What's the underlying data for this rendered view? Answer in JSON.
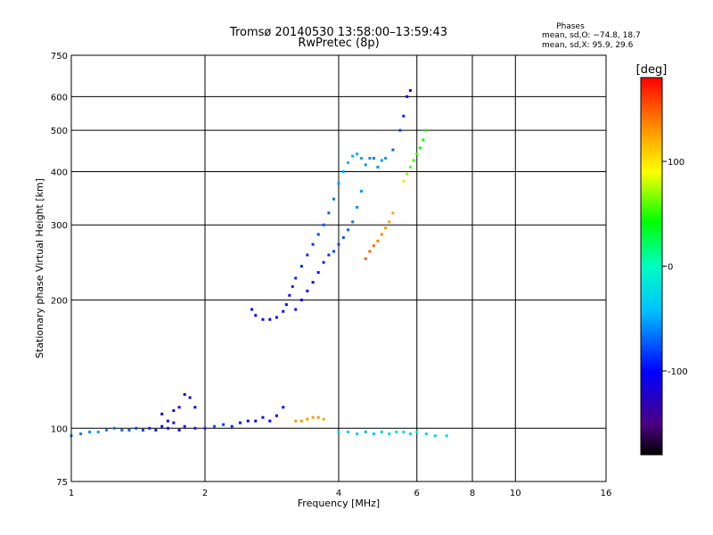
{
  "chart_data": {
    "type": "scatter",
    "title": "Tromsø 20140530 13:58:00–13:59:43",
    "subtitle": "RwPretec (8p)",
    "xlabel": "Frequency [MHz]",
    "ylabel": "Stationary phase Virtual Height [km]",
    "xscale": "log",
    "yscale": "log",
    "xlim": [
      1,
      16
    ],
    "ylim": [
      75,
      750
    ],
    "xticks": [
      1,
      2,
      4,
      6,
      8,
      10,
      16
    ],
    "yticks": [
      75,
      100,
      200,
      300,
      400,
      500,
      600,
      750
    ],
    "grid": true,
    "phase_stats": {
      "title": "Phases",
      "line_o": "mean, sd,O: −74.8, 18.7",
      "line_x": "mean, sd,X:  95.9, 29.6"
    },
    "colorbar": {
      "label": "[deg]",
      "ticks": [
        100,
        0,
        -100
      ],
      "range": [
        -180,
        180
      ],
      "colormap": "rainbow"
    },
    "series": [
      {
        "points": [
          [
            1.0,
            96,
            -60
          ],
          [
            1.05,
            97,
            -65
          ],
          [
            1.1,
            98,
            -60
          ],
          [
            1.15,
            98,
            -55
          ],
          [
            1.2,
            99,
            -60
          ],
          [
            1.25,
            100,
            -65
          ],
          [
            1.3,
            99,
            -70
          ],
          [
            1.35,
            99,
            -75
          ],
          [
            1.4,
            100,
            -80
          ],
          [
            1.45,
            99,
            -85
          ],
          [
            1.5,
            100,
            -90
          ],
          [
            1.55,
            99,
            -95
          ],
          [
            1.6,
            101,
            -100
          ],
          [
            1.65,
            100,
            -100
          ],
          [
            1.7,
            103,
            -105
          ],
          [
            1.75,
            99,
            -100
          ],
          [
            1.8,
            101,
            -95
          ],
          [
            1.9,
            100,
            -90
          ],
          [
            2.0,
            100,
            -85
          ],
          [
            2.1,
            101,
            -80
          ],
          [
            2.2,
            102,
            -85
          ],
          [
            2.3,
            101,
            -90
          ],
          [
            2.4,
            103,
            -95
          ],
          [
            2.5,
            104,
            -100
          ],
          [
            2.6,
            104,
            -100
          ],
          [
            2.7,
            106,
            -100
          ],
          [
            2.8,
            104,
            -100
          ],
          [
            2.9,
            107,
            -100
          ],
          [
            3.0,
            112,
            -100
          ],
          [
            1.6,
            108,
            -110
          ],
          [
            1.65,
            104,
            -110
          ],
          [
            1.7,
            110,
            -115
          ],
          [
            1.75,
            112,
            -110
          ],
          [
            1.8,
            120,
            -110
          ],
          [
            1.85,
            118,
            -110
          ],
          [
            1.9,
            112,
            -100
          ],
          [
            2.55,
            190,
            -100
          ],
          [
            2.6,
            184,
            -100
          ],
          [
            2.7,
            180,
            -100
          ],
          [
            2.8,
            180,
            -100
          ],
          [
            2.9,
            182,
            -100
          ],
          [
            3.0,
            188,
            -100
          ],
          [
            3.05,
            195,
            -100
          ],
          [
            3.1,
            205,
            -95
          ],
          [
            3.15,
            215,
            -90
          ],
          [
            3.2,
            225,
            -90
          ],
          [
            3.3,
            240,
            -90
          ],
          [
            3.4,
            255,
            -90
          ],
          [
            3.5,
            270,
            -85
          ],
          [
            3.6,
            285,
            -80
          ],
          [
            3.7,
            300,
            -75
          ],
          [
            3.8,
            320,
            -70
          ],
          [
            3.9,
            345,
            -65
          ],
          [
            4.0,
            375,
            -55
          ],
          [
            4.1,
            400,
            -50
          ],
          [
            4.2,
            420,
            -45
          ],
          [
            4.3,
            435,
            -45
          ],
          [
            4.4,
            440,
            -50
          ],
          [
            4.5,
            430,
            -50
          ],
          [
            4.6,
            415,
            -55
          ],
          [
            4.7,
            430,
            -60
          ],
          [
            4.8,
            430,
            -65
          ],
          [
            4.9,
            410,
            -60
          ],
          [
            5.0,
            425,
            -55
          ],
          [
            5.1,
            430,
            -55
          ],
          [
            5.3,
            450,
            -70
          ],
          [
            5.5,
            500,
            -80
          ],
          [
            5.6,
            540,
            -90
          ],
          [
            5.7,
            600,
            -100
          ],
          [
            5.8,
            620,
            -105
          ],
          [
            3.2,
            190,
            -95
          ],
          [
            3.3,
            200,
            -100
          ],
          [
            3.4,
            210,
            -100
          ],
          [
            3.5,
            220,
            -100
          ],
          [
            3.6,
            232,
            -95
          ],
          [
            3.7,
            245,
            -90
          ],
          [
            3.8,
            255,
            -85
          ],
          [
            3.9,
            260,
            -80
          ],
          [
            4.0,
            270,
            -80
          ],
          [
            4.1,
            280,
            -75
          ],
          [
            4.2,
            292,
            -70
          ],
          [
            4.3,
            305,
            -65
          ],
          [
            4.4,
            330,
            -60
          ],
          [
            4.5,
            360,
            -55
          ],
          [
            4.6,
            250,
            150
          ],
          [
            4.7,
            260,
            150
          ],
          [
            4.8,
            268,
            145
          ],
          [
            4.9,
            275,
            140
          ],
          [
            5.0,
            285,
            135
          ],
          [
            5.1,
            295,
            130
          ],
          [
            5.2,
            305,
            125
          ],
          [
            5.3,
            320,
            120
          ],
          [
            5.6,
            380,
            80
          ],
          [
            5.7,
            395,
            70
          ],
          [
            5.8,
            410,
            60
          ],
          [
            5.9,
            425,
            55
          ],
          [
            6.0,
            440,
            50
          ],
          [
            6.1,
            455,
            45
          ],
          [
            6.2,
            475,
            45
          ],
          [
            6.3,
            500,
            45
          ],
          [
            3.2,
            104,
            130
          ],
          [
            3.3,
            104,
            130
          ],
          [
            3.4,
            105,
            130
          ],
          [
            3.5,
            106,
            130
          ],
          [
            3.6,
            106,
            130
          ],
          [
            3.7,
            105,
            125
          ],
          [
            4.0,
            98,
            -30
          ],
          [
            4.2,
            98,
            -35
          ],
          [
            4.4,
            97,
            -40
          ],
          [
            4.6,
            98,
            -45
          ],
          [
            4.8,
            97,
            -40
          ],
          [
            5.0,
            98,
            -30
          ],
          [
            5.2,
            97,
            -25
          ],
          [
            5.4,
            98,
            -20
          ],
          [
            5.6,
            98,
            -25
          ],
          [
            5.8,
            97,
            -30
          ],
          [
            6.0,
            98,
            -20
          ],
          [
            6.3,
            97,
            -25
          ],
          [
            6.6,
            96,
            -30
          ],
          [
            7.0,
            96,
            -30
          ]
        ]
      }
    ]
  }
}
